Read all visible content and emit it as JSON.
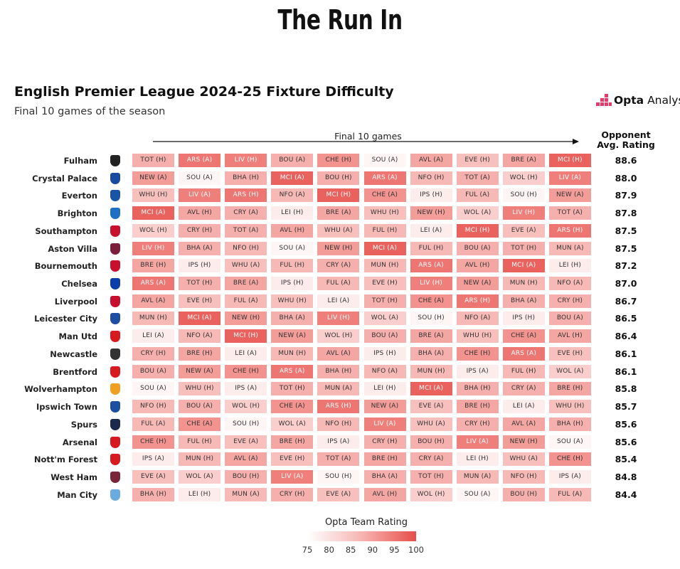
{
  "header": {
    "main_title": "The Run In",
    "title": "English Premier League 2024-25 Fixture Difficulty",
    "subtitle": "Final 10 games of the season",
    "brand_strong": "Opta",
    "brand_rest": " Analyst",
    "column_label": "Final 10 games",
    "rating_header_1": "Opponent",
    "rating_header_2": "Avg. Rating"
  },
  "colors": {
    "scale": [
      "#ffffff",
      "#fbe2e1",
      "#f6b5b2",
      "#ee7874",
      "#e44e4a"
    ],
    "brand": "#e8396b"
  },
  "chart_data": {
    "type": "heatmap",
    "title": "English Premier League 2024-25 Fixture Difficulty",
    "subtitle": "Final 10 games of the season",
    "xlabel": "Final 10 games",
    "value_header": "Opponent Avg. Rating",
    "colorbar": {
      "label": "Opta Team Rating",
      "range": [
        75,
        100
      ],
      "ticks": [
        "75",
        "80",
        "85",
        "90",
        "95",
        "100"
      ]
    },
    "team_ratings": {
      "ARS": 94,
      "LIV": 93,
      "MCI": 97,
      "TOT": 88,
      "AVL": 89,
      "NEW": 90,
      "CHE": 91,
      "CRY": 88,
      "BRE": 89,
      "BOU": 88,
      "FUL": 87,
      "BHA": 88,
      "NFO": 87,
      "MUN": 87,
      "EVE": 86,
      "WHU": 86,
      "WOL": 84,
      "LEI": 79,
      "IPS": 79,
      "SOU": 77
    },
    "rows": [
      {
        "team": "Fulham",
        "crest": "#222222",
        "rating": "88.6",
        "fixtures": [
          "TOT (H)",
          "ARS (A)",
          "LIV (H)",
          "BOU (A)",
          "CHE (H)",
          "SOU (A)",
          "AVL (A)",
          "EVE (H)",
          "BRE (A)",
          "MCI (H)"
        ]
      },
      {
        "team": "Crystal Palace",
        "crest": "#1b4aa3",
        "rating": "88.0",
        "fixtures": [
          "NEW (A)",
          "SOU (A)",
          "BHA (H)",
          "MCI (A)",
          "BOU (H)",
          "ARS (A)",
          "NFO (H)",
          "TOT (A)",
          "WOL (H)",
          "LIV (A)"
        ]
      },
      {
        "team": "Everton",
        "crest": "#1a54a7",
        "rating": "87.9",
        "fixtures": [
          "WHU (H)",
          "LIV (A)",
          "ARS (H)",
          "NFO (A)",
          "MCI (H)",
          "CHE (A)",
          "IPS (H)",
          "FUL (A)",
          "SOU (H)",
          "NEW (A)"
        ]
      },
      {
        "team": "Brighton",
        "crest": "#1e70c6",
        "rating": "87.8",
        "fixtures": [
          "MCI (A)",
          "AVL (H)",
          "CRY (A)",
          "LEI (H)",
          "BRE (A)",
          "WHU (H)",
          "NEW (H)",
          "WOL (A)",
          "LIV (H)",
          "TOT (A)"
        ]
      },
      {
        "team": "Southampton",
        "crest": "#c8102e",
        "rating": "87.5",
        "fixtures": [
          "WOL (H)",
          "CRY (H)",
          "TOT (A)",
          "AVL (H)",
          "WHU (A)",
          "FUL (H)",
          "LEI (A)",
          "MCI (H)",
          "EVE (A)",
          "ARS (H)"
        ]
      },
      {
        "team": "Aston Villa",
        "crest": "#7a1e3a",
        "rating": "87.5",
        "fixtures": [
          "LIV (H)",
          "BHA (A)",
          "NFO (H)",
          "SOU (A)",
          "NEW (H)",
          "MCI (A)",
          "FUL (H)",
          "BOU (A)",
          "TOT (H)",
          "MUN (A)"
        ]
      },
      {
        "team": "Bournemouth",
        "crest": "#c8102e",
        "rating": "87.2",
        "fixtures": [
          "BRE (H)",
          "IPS (H)",
          "WHU (A)",
          "FUL (H)",
          "CRY (A)",
          "MUN (H)",
          "ARS (A)",
          "AVL (H)",
          "MCI (A)",
          "LEI (H)"
        ]
      },
      {
        "team": "Chelsea",
        "crest": "#0b3ea8",
        "rating": "87.0",
        "fixtures": [
          "ARS (A)",
          "TOT (H)",
          "BRE (A)",
          "IPS (H)",
          "FUL (A)",
          "EVE (H)",
          "LIV (H)",
          "NEW (A)",
          "MUN (H)",
          "NFO (A)"
        ]
      },
      {
        "team": "Liverpool",
        "crest": "#c8102e",
        "rating": "86.7",
        "fixtures": [
          "AVL (A)",
          "EVE (H)",
          "FUL (A)",
          "WHU (H)",
          "LEI (A)",
          "TOT (H)",
          "CHE (A)",
          "ARS (H)",
          "BHA (A)",
          "CRY (H)"
        ]
      },
      {
        "team": "Leicester City",
        "crest": "#1f4ea3",
        "rating": "86.5",
        "fixtures": [
          "MUN (H)",
          "MCI (A)",
          "NEW (H)",
          "BHA (A)",
          "LIV (H)",
          "WOL (A)",
          "SOU (H)",
          "NFO (A)",
          "IPS (H)",
          "BOU (A)"
        ]
      },
      {
        "team": "Man Utd",
        "crest": "#d71920",
        "rating": "86.4",
        "fixtures": [
          "LEI (A)",
          "NFO (A)",
          "MCI (H)",
          "NEW (A)",
          "WOL (H)",
          "BOU (A)",
          "BRE (A)",
          "WHU (H)",
          "CHE (A)",
          "AVL (H)"
        ]
      },
      {
        "team": "Newcastle",
        "crest": "#333333",
        "rating": "86.1",
        "fixtures": [
          "CRY (H)",
          "BRE (H)",
          "LEI (A)",
          "MUN (H)",
          "AVL (A)",
          "IPS (H)",
          "BHA (A)",
          "CHE (H)",
          "ARS (A)",
          "EVE (H)"
        ]
      },
      {
        "team": "Brentford",
        "crest": "#d71920",
        "rating": "86.1",
        "fixtures": [
          "BOU (A)",
          "NEW (A)",
          "CHE (H)",
          "ARS (A)",
          "BHA (H)",
          "NFO (A)",
          "MUN (H)",
          "IPS (A)",
          "FUL (H)",
          "WOL (A)"
        ]
      },
      {
        "team": "Wolverhampton",
        "crest": "#f0a020",
        "rating": "85.8",
        "fixtures": [
          "SOU (A)",
          "WHU (H)",
          "IPS (A)",
          "TOT (H)",
          "MUN (A)",
          "LEI (H)",
          "MCI (A)",
          "BHA (H)",
          "CRY (A)",
          "BRE (H)"
        ]
      },
      {
        "team": "Ipswich Town",
        "crest": "#1d4fa0",
        "rating": "85.7",
        "fixtures": [
          "NFO (H)",
          "BOU (A)",
          "WOL (H)",
          "CHE (A)",
          "ARS (H)",
          "NEW (A)",
          "EVE (A)",
          "BRE (H)",
          "LEI (A)",
          "WHU (H)"
        ]
      },
      {
        "team": "Spurs",
        "crest": "#1b2a4a",
        "rating": "85.6",
        "fixtures": [
          "FUL (A)",
          "CHE (A)",
          "SOU (H)",
          "WOL (A)",
          "NFO (H)",
          "LIV (A)",
          "WHU (A)",
          "CRY (H)",
          "AVL (A)",
          "BHA (H)"
        ]
      },
      {
        "team": "Arsenal",
        "crest": "#d71920",
        "rating": "85.6",
        "fixtures": [
          "CHE (H)",
          "FUL (H)",
          "EVE (A)",
          "BRE (H)",
          "IPS (A)",
          "CRY (H)",
          "BOU (H)",
          "LIV (A)",
          "NEW (H)",
          "SOU (A)"
        ]
      },
      {
        "team": "Nott'm Forest",
        "crest": "#d71920",
        "rating": "85.4",
        "fixtures": [
          "IPS (A)",
          "MUN (H)",
          "AVL (A)",
          "EVE (H)",
          "TOT (A)",
          "BRE (H)",
          "CRY (A)",
          "LEI (H)",
          "WHU (A)",
          "CHE (H)"
        ]
      },
      {
        "team": "West Ham",
        "crest": "#7a263a",
        "rating": "84.8",
        "fixtures": [
          "EVE (A)",
          "WOL (A)",
          "BOU (H)",
          "LIV (A)",
          "SOU (H)",
          "BHA (A)",
          "TOT (H)",
          "MUN (A)",
          "NFO (H)",
          "IPS (A)"
        ]
      },
      {
        "team": "Man City",
        "crest": "#6cabdd",
        "rating": "84.4",
        "fixtures": [
          "BHA (H)",
          "LEI (H)",
          "MUN (A)",
          "CRY (H)",
          "EVE (A)",
          "AVL (H)",
          "WOL (H)",
          "SOU (A)",
          "BOU (H)",
          "FUL (A)"
        ]
      }
    ]
  }
}
